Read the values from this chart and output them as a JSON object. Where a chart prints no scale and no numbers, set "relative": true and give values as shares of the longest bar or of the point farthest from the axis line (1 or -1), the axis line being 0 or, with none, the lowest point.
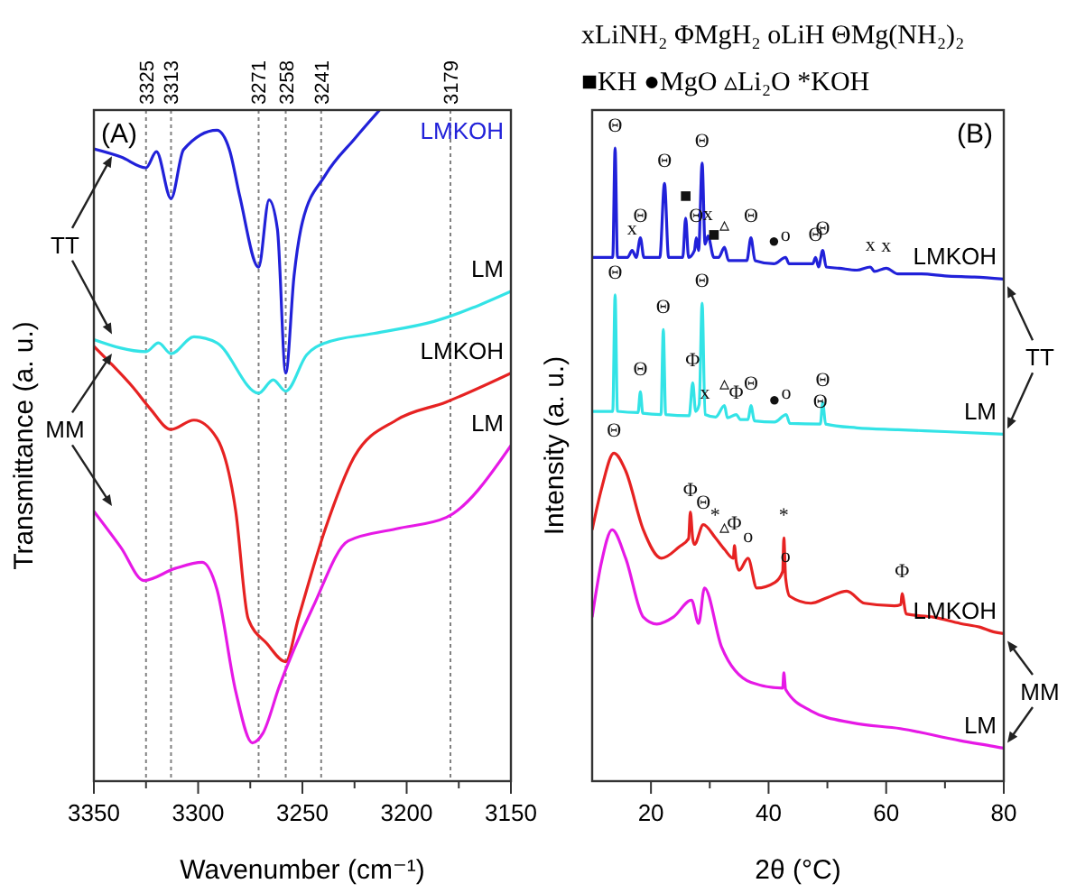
{
  "chart_data": [
    {
      "type": "line",
      "relative": true,
      "xlabel": "Wavenumber (cm⁻¹)",
      "ylabel": "Transmittance (a. u.)",
      "xlim": [
        3350,
        3150
      ],
      "xticks": [
        3350,
        {
          "value": 3325,
          "label": null
        },
        3300,
        {
          "value": 3275,
          "label": null
        },
        3250,
        {
          "value": 3225,
          "label": null
        },
        3200,
        {
          "value": 3175,
          "label": null
        },
        3150
      ],
      "series": [
        {
          "name": "LMKOH",
          "color": "#2121d9",
          "x": [
            3350,
            3337,
            3325,
            3320,
            3313,
            3307,
            3291,
            3285,
            3280,
            3271,
            3266,
            3262,
            3258,
            3254,
            3250,
            3239,
            3225,
            3213
          ],
          "values": [
            0.942,
            0.93,
            0.914,
            0.938,
            0.868,
            0.941,
            0.97,
            0.941,
            0.871,
            0.766,
            0.866,
            0.823,
            0.608,
            0.753,
            0.833,
            0.903,
            0.957,
            1.0
          ]
        },
        {
          "name": "LM",
          "color": "#33e3e6",
          "x": [
            3350,
            3325,
            3319,
            3313,
            3302,
            3291,
            3271,
            3264,
            3258,
            3248,
            3239,
            3216,
            3187,
            3150
          ],
          "values": [
            0.658,
            0.64,
            0.653,
            0.637,
            0.662,
            0.653,
            0.578,
            0.598,
            0.581,
            0.635,
            0.653,
            0.667,
            0.685,
            0.73
          ]
        },
        {
          "name": "LMKOH",
          "color": "#e62222",
          "x": [
            3350,
            3343,
            3331,
            3323,
            3313,
            3302,
            3291,
            3282,
            3276,
            3267,
            3258,
            3252,
            3239,
            3225,
            3205,
            3181,
            3150
          ],
          "values": [
            0.648,
            0.626,
            0.586,
            0.555,
            0.524,
            0.538,
            0.511,
            0.403,
            0.242,
            0.205,
            0.178,
            0.242,
            0.376,
            0.484,
            0.538,
            0.565,
            0.608
          ]
        },
        {
          "name": "LM",
          "color": "#e619e6",
          "x": [
            3350,
            3337,
            3326,
            3311,
            3298,
            3291,
            3282,
            3274,
            3269,
            3261,
            3245,
            3228,
            3205,
            3181,
            3150
          ],
          "values": [
            0.402,
            0.348,
            0.299,
            0.317,
            0.326,
            0.286,
            0.134,
            0.057,
            0.071,
            0.142,
            0.259,
            0.358,
            0.376,
            0.393,
            0.5
          ]
        }
      ],
      "ref_lines": [
        {
          "axis": "x",
          "value": 3325,
          "label": "3325",
          "color": "#808080",
          "line_style": "dotted"
        },
        {
          "axis": "x",
          "value": 3313,
          "label": "3313",
          "color": "#808080",
          "line_style": "dotted"
        },
        {
          "axis": "x",
          "value": 3271,
          "label": "3271",
          "color": "#808080",
          "line_style": "dotted"
        },
        {
          "axis": "x",
          "value": 3258,
          "label": "3258",
          "color": "#808080",
          "line_style": "dotted"
        },
        {
          "axis": "x",
          "value": 3241,
          "label": "3241",
          "color": "#808080",
          "line_style": "dotted"
        },
        {
          "axis": "x",
          "value": 3179,
          "label": "3179",
          "color": "#808080",
          "line_style": "dotted"
        }
      ],
      "annotations": [
        "(A)",
        "TT",
        "MM"
      ]
    },
    {
      "type": "line",
      "relative": true,
      "title": "xLiNH₂  ΦMgH₂  oLiH  ΘMg(NH₂)₂",
      "subtitle": "■KH  ●MgO  ▵Li₂O  *KOH",
      "xlabel": "2θ (°C)",
      "ylabel": "Intensity (a. u.)",
      "xlim": [
        10,
        80
      ],
      "xticks": [
        20,
        {
          "value": 30,
          "label": null
        },
        40,
        {
          "value": 50,
          "label": null
        },
        60,
        {
          "value": 70,
          "label": null
        },
        80
      ],
      "series": [
        {
          "name": "LMKOH",
          "color": "#2121d9",
          "x": [
            10,
            12,
            13.5,
            13.9,
            14.3,
            16,
            16.8,
            17.5,
            18.2,
            18.8,
            21.5,
            22.3,
            23,
            25.4,
            25.9,
            26.4,
            27.4,
            27.7,
            28.1,
            28.7,
            29.2,
            29.7,
            30.7,
            31.5,
            32.5,
            33.2,
            36.3,
            37,
            37.7,
            40.9,
            42.9,
            43.5,
            47.5,
            48,
            48.5,
            49.2,
            49.8,
            52,
            55,
            57.3,
            58,
            60,
            62,
            66,
            70,
            75,
            80
          ],
          "values": [
            0.827,
            0.827,
            0.827,
            1.0,
            0.827,
            0.827,
            0.838,
            0.827,
            0.858,
            0.827,
            0.827,
            0.944,
            0.827,
            0.827,
            0.889,
            0.827,
            0.838,
            0.858,
            0.838,
            0.976,
            0.848,
            0.861,
            0.827,
            0.827,
            0.843,
            0.822,
            0.822,
            0.858,
            0.822,
            0.817,
            0.827,
            0.817,
            0.817,
            0.827,
            0.812,
            0.838,
            0.812,
            0.81,
            0.807,
            0.812,
            0.805,
            0.81,
            0.801,
            0.801,
            0.798,
            0.796,
            0.793
          ]
        },
        {
          "name": "LM",
          "color": "#33e3e6",
          "x": [
            10,
            13.5,
            13.9,
            14.3,
            17.8,
            18.2,
            18.6,
            21.7,
            22.1,
            22.5,
            26.5,
            27.1,
            27.6,
            28.2,
            28.7,
            29.2,
            31,
            32.5,
            33,
            34.5,
            35.2,
            36.5,
            37,
            37.6,
            41,
            43,
            43.6,
            48.8,
            49.2,
            49.7,
            55,
            62,
            70,
            80
          ],
          "values": [
            0.584,
            0.584,
            0.768,
            0.584,
            0.582,
            0.615,
            0.581,
            0.579,
            0.713,
            0.579,
            0.577,
            0.629,
            0.584,
            0.595,
            0.755,
            0.579,
            0.575,
            0.593,
            0.574,
            0.579,
            0.571,
            0.571,
            0.593,
            0.569,
            0.567,
            0.579,
            0.565,
            0.564,
            0.598,
            0.564,
            0.558,
            0.555,
            0.552,
            0.548
          ]
        },
        {
          "name": "LMKOH",
          "color": "#e62222",
          "x": [
            10,
            11.6,
            13.7,
            15.7,
            18.7,
            21.8,
            24.8,
            26.4,
            26.7,
            27.1,
            27.4,
            28.9,
            30.9,
            32.5,
            34,
            34.2,
            34.5,
            35,
            36.5,
            38,
            41.1,
            42.4,
            42.6,
            42.9,
            43.6,
            47.2,
            50,
            53.3,
            56.3,
            61.4,
            62.5,
            62.7,
            63.4,
            68,
            72.6,
            76,
            78.2,
            80
          ],
          "values": [
            0.397,
            0.462,
            0.518,
            0.49,
            0.397,
            0.352,
            0.37,
            0.383,
            0.425,
            0.383,
            0.374,
            0.405,
            0.385,
            0.366,
            0.352,
            0.372,
            0.346,
            0.333,
            0.352,
            0.305,
            0.314,
            0.331,
            0.384,
            0.321,
            0.292,
            0.281,
            0.29,
            0.3,
            0.281,
            0.277,
            0.279,
            0.296,
            0.264,
            0.259,
            0.249,
            0.243,
            0.236,
            0.233
          ]
        },
        {
          "name": "LM",
          "color": "#e619e6",
          "x": [
            10,
            11.5,
            13.4,
            15.7,
            18.7,
            21,
            23.8,
            26.9,
            28.1,
            29.1,
            32,
            37,
            42.4,
            42.6,
            42.9,
            47.2,
            54.3,
            62.4,
            72.6,
            78.2,
            80
          ],
          "values": [
            0.259,
            0.342,
            0.397,
            0.352,
            0.259,
            0.248,
            0.259,
            0.286,
            0.249,
            0.305,
            0.212,
            0.156,
            0.147,
            0.171,
            0.145,
            0.111,
            0.092,
            0.083,
            0.064,
            0.055,
            0.052
          ]
        }
      ],
      "annotations": [
        "(B)",
        "TT",
        "MM",
        {
          "text": "Θ",
          "x": 13.9,
          "y": 1.0
        },
        {
          "text": "x",
          "x": 16.8,
          "y": 0.838
        },
        {
          "text": "Θ",
          "x": 18.2,
          "y": 0.858
        },
        {
          "text": "Θ",
          "x": 22.3,
          "y": 0.944
        },
        {
          "text": "■",
          "x": 25.9,
          "y": 0.889
        },
        {
          "text": "Θ",
          "x": 27.7,
          "y": 0.858
        },
        {
          "text": "x",
          "x": 29.7,
          "y": 0.861
        },
        {
          "text": "Θ",
          "x": 28.7,
          "y": 0.976
        },
        {
          "text": "■",
          "x": 30.7,
          "y": 0.827
        },
        {
          "text": "▵",
          "x": 32.5,
          "y": 0.843
        },
        {
          "text": "Θ",
          "x": 37,
          "y": 0.858
        },
        {
          "text": "●",
          "x": 40.9,
          "y": 0.817
        },
        {
          "text": "o",
          "x": 42.9,
          "y": 0.827
        },
        {
          "text": "Θ",
          "x": 48,
          "y": 0.827
        },
        {
          "text": "Θ",
          "x": 49.2,
          "y": 0.838
        },
        {
          "text": "x",
          "x": 57.3,
          "y": 0.812
        },
        {
          "text": "x",
          "x": 60,
          "y": 0.81
        },
        {
          "text": "Θ",
          "x": 13.9,
          "y": 0.768
        },
        {
          "text": "Θ",
          "x": 18.2,
          "y": 0.615
        },
        {
          "text": "Θ",
          "x": 22.1,
          "y": 0.713
        },
        {
          "text": "Φ",
          "x": 27.1,
          "y": 0.629
        },
        {
          "text": "Θ",
          "x": 28.7,
          "y": 0.755
        },
        {
          "text": "x",
          "x": 29.2,
          "y": 0.579
        },
        {
          "text": "▵",
          "x": 32.5,
          "y": 0.593
        },
        {
          "text": "Φ",
          "x": 34.5,
          "y": 0.579
        },
        {
          "text": "Θ",
          "x": 37,
          "y": 0.593
        },
        {
          "text": "●",
          "x": 41,
          "y": 0.567
        },
        {
          "text": "o",
          "x": 43,
          "y": 0.579
        },
        {
          "text": "Θ",
          "x": 48.8,
          "y": 0.564
        },
        {
          "text": "Θ",
          "x": 49.2,
          "y": 0.598
        },
        {
          "text": "Θ",
          "x": 13.7,
          "y": 0.518
        },
        {
          "text": "Φ",
          "x": 26.7,
          "y": 0.425
        },
        {
          "text": "Θ",
          "x": 28.9,
          "y": 0.405
        },
        {
          "text": "*",
          "x": 30.9,
          "y": 0.385
        },
        {
          "text": "▵",
          "x": 32.5,
          "y": 0.366
        },
        {
          "text": "Φ",
          "x": 34.2,
          "y": 0.372
        },
        {
          "text": "o",
          "x": 36.5,
          "y": 0.352
        },
        {
          "text": "*",
          "x": 42.6,
          "y": 0.384
        },
        {
          "text": "o",
          "x": 42.9,
          "y": 0.321
        },
        {
          "text": "Φ",
          "x": 62.7,
          "y": 0.296
        }
      ]
    }
  ]
}
